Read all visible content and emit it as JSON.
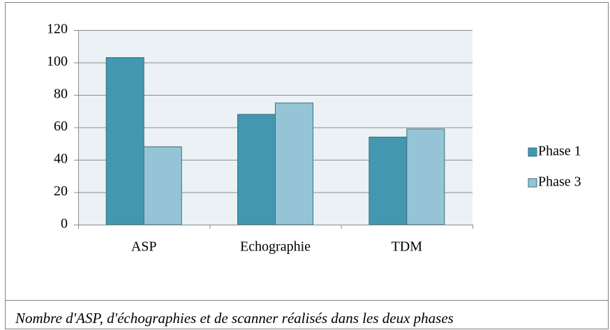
{
  "chart_data": {
    "type": "bar",
    "caption": "Nombre d'ASP, d'échographies et de scanner réalisés dans les deux phases",
    "categories": [
      "ASP",
      "Echographie",
      "TDM"
    ],
    "series": [
      {
        "name": "Phase 1",
        "color": "#4398b0",
        "values": [
          103,
          68,
          54
        ]
      },
      {
        "name": "Phase 3",
        "color": "#94c4d6",
        "values": [
          48,
          75,
          59
        ]
      }
    ],
    "ylim": [
      0,
      120
    ],
    "yticks": [
      0,
      20,
      40,
      60,
      80,
      100,
      120
    ],
    "grid": true,
    "legend": "right"
  }
}
